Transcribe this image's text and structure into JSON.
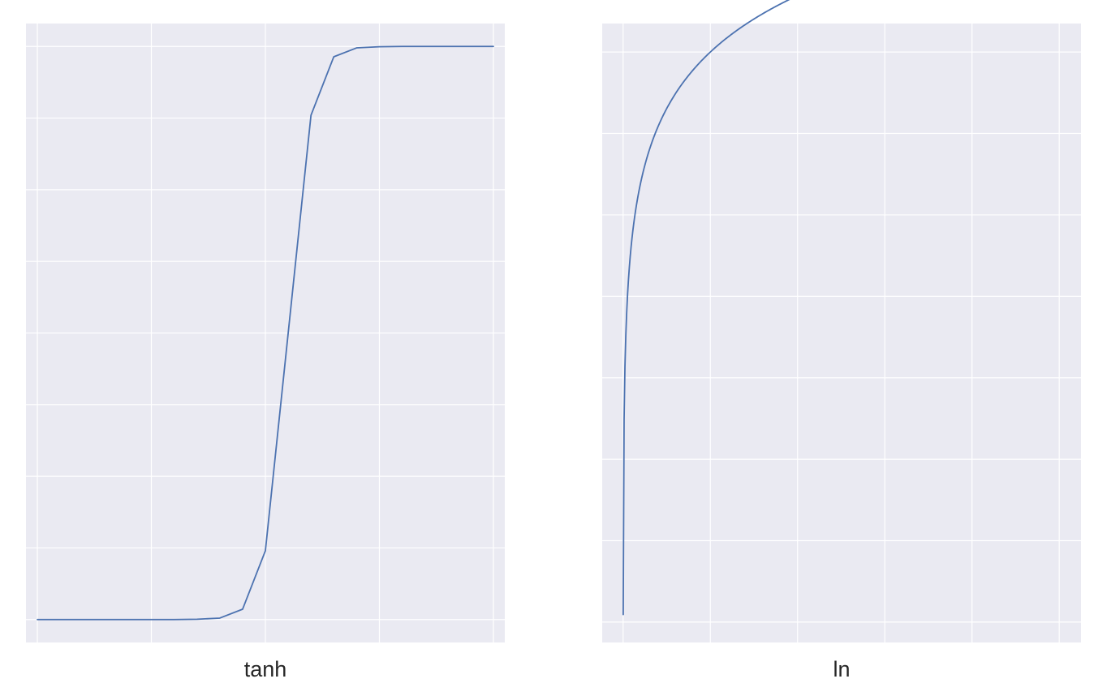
{
  "colors": {
    "background": "#eaeaf2",
    "grid": "#ffffff",
    "line": "#4c72b0",
    "text": "#262626"
  },
  "chart_data": [
    {
      "type": "line",
      "title": "",
      "xlabel": "tanh",
      "ylabel": "",
      "grid": true,
      "tick_labels_visible": false,
      "xlim": [
        -21,
        21
      ],
      "ylim": [
        -1.08,
        1.08
      ],
      "xticks": [
        -20,
        -10,
        0,
        10,
        20
      ],
      "yticks": [
        -1.0,
        -0.75,
        -0.5,
        -0.25,
        0.0,
        0.25,
        0.5,
        0.75,
        1.0
      ],
      "series": [
        {
          "x": [
            -20,
            -18,
            -16,
            -14,
            -12,
            -10,
            -8,
            -6,
            -4,
            -2,
            0,
            2,
            4,
            6,
            8,
            10,
            12,
            14,
            16,
            18,
            20
          ],
          "y": [
            -1.0,
            -1.0,
            -1.0,
            -1.0,
            -1.0,
            -1.0,
            -1.0,
            -0.999,
            -0.995,
            -0.964,
            -0.76,
            0.0,
            0.76,
            0.964,
            0.995,
            0.999,
            1.0,
            1.0,
            1.0,
            1.0,
            1.0
          ]
        }
      ]
    },
    {
      "type": "line",
      "title": "",
      "xlabel": "ln",
      "ylabel": "",
      "grid": true,
      "tick_labels_visible": false,
      "xlim": [
        -0.24,
        5.25
      ],
      "ylim": [
        -7.25,
        0.35
      ],
      "xticks": [
        0,
        1,
        2,
        3,
        4,
        5
      ],
      "yticks": [
        -7,
        -6,
        -5,
        -4,
        -3,
        -2,
        -1,
        0
      ],
      "series": [
        {
          "function": "ln(x)",
          "x_range": [
            0.001,
            5
          ],
          "samples": 500
        }
      ]
    }
  ]
}
